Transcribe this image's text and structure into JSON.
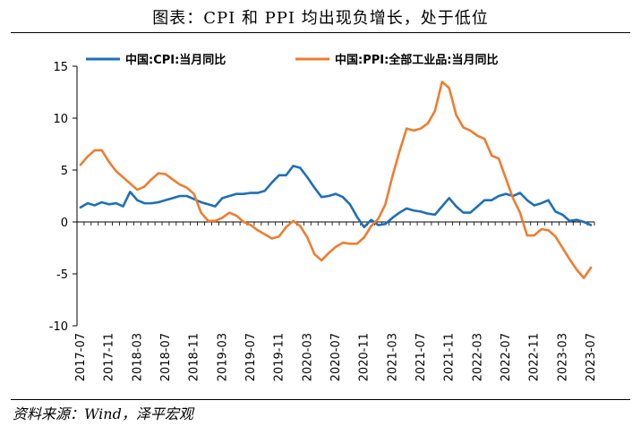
{
  "title": "图表：CPI 和 PPI 均出现负增长，处于低位",
  "source": "资料来源：Wind，泽平宏观",
  "chart_data": {
    "type": "line",
    "title": "图表：CPI 和 PPI 均出现负增长，处于低位",
    "xlabel": "",
    "ylabel": "",
    "ylim": [
      -10,
      15
    ],
    "yticks": [
      -10,
      -5,
      0,
      5,
      10,
      15
    ],
    "xtick_labels": [
      "2017-07",
      "2017-11",
      "2018-03",
      "2018-07",
      "2018-11",
      "2019-03",
      "2019-07",
      "2019-11",
      "2020-03",
      "2020-07",
      "2020-11",
      "2021-03",
      "2021-07",
      "2021-11",
      "2022-03",
      "2022-07",
      "2022-11",
      "2023-03",
      "2023-07"
    ],
    "legend_placement": "top",
    "grid": false,
    "x": [
      "2017-07",
      "2017-08",
      "2017-09",
      "2017-10",
      "2017-11",
      "2017-12",
      "2018-01",
      "2018-02",
      "2018-03",
      "2018-04",
      "2018-05",
      "2018-06",
      "2018-07",
      "2018-08",
      "2018-09",
      "2018-10",
      "2018-11",
      "2018-12",
      "2019-01",
      "2019-02",
      "2019-03",
      "2019-04",
      "2019-05",
      "2019-06",
      "2019-07",
      "2019-08",
      "2019-09",
      "2019-10",
      "2019-11",
      "2019-12",
      "2020-01",
      "2020-02",
      "2020-03",
      "2020-04",
      "2020-05",
      "2020-06",
      "2020-07",
      "2020-08",
      "2020-09",
      "2020-10",
      "2020-11",
      "2020-12",
      "2021-01",
      "2021-02",
      "2021-03",
      "2021-04",
      "2021-05",
      "2021-06",
      "2021-07",
      "2021-08",
      "2021-09",
      "2021-10",
      "2021-11",
      "2021-12",
      "2022-01",
      "2022-02",
      "2022-03",
      "2022-04",
      "2022-05",
      "2022-06",
      "2022-07",
      "2022-08",
      "2022-09",
      "2022-10",
      "2022-11",
      "2022-12",
      "2023-01",
      "2023-02",
      "2023-03",
      "2023-04",
      "2023-05",
      "2023-06",
      "2023-07"
    ],
    "series": [
      {
        "name": "中国:CPI:当月同比",
        "color": "#1f6fb5",
        "values": [
          1.4,
          1.8,
          1.6,
          1.9,
          1.7,
          1.8,
          1.5,
          2.9,
          2.1,
          1.8,
          1.8,
          1.9,
          2.1,
          2.3,
          2.5,
          2.5,
          2.2,
          1.9,
          1.7,
          1.5,
          2.3,
          2.5,
          2.7,
          2.7,
          2.8,
          2.8,
          3.0,
          3.8,
          4.5,
          4.5,
          5.4,
          5.2,
          4.3,
          3.3,
          2.4,
          2.5,
          2.7,
          2.4,
          1.7,
          0.5,
          -0.5,
          0.2,
          -0.3,
          -0.2,
          0.4,
          0.9,
          1.3,
          1.1,
          1.0,
          0.8,
          0.7,
          1.5,
          2.3,
          1.5,
          0.9,
          0.9,
          1.5,
          2.1,
          2.1,
          2.5,
          2.7,
          2.5,
          2.8,
          2.1,
          1.6,
          1.8,
          2.1,
          1.0,
          0.7,
          0.1,
          0.2,
          0.0,
          -0.3
        ]
      },
      {
        "name": "中国:PPI:全部工业品:当月同比",
        "color": "#ed7d31",
        "values": [
          5.5,
          6.3,
          6.9,
          6.9,
          5.8,
          4.9,
          4.3,
          3.7,
          3.1,
          3.4,
          4.1,
          4.7,
          4.6,
          4.1,
          3.6,
          3.3,
          2.7,
          0.9,
          0.1,
          0.1,
          0.4,
          0.9,
          0.6,
          0.0,
          -0.3,
          -0.8,
          -1.2,
          -1.6,
          -1.4,
          -0.5,
          0.1,
          -0.4,
          -1.5,
          -3.1,
          -3.7,
          -3.0,
          -2.4,
          -2.0,
          -2.1,
          -2.1,
          -1.5,
          -0.4,
          0.3,
          1.7,
          4.4,
          6.8,
          9.0,
          8.8,
          9.0,
          9.5,
          10.7,
          13.5,
          12.9,
          10.3,
          9.1,
          8.8,
          8.3,
          8.0,
          6.4,
          6.1,
          4.2,
          2.3,
          0.9,
          -1.3,
          -1.3,
          -0.7,
          -0.8,
          -1.4,
          -2.5,
          -3.6,
          -4.6,
          -5.4,
          -4.4
        ]
      }
    ]
  }
}
